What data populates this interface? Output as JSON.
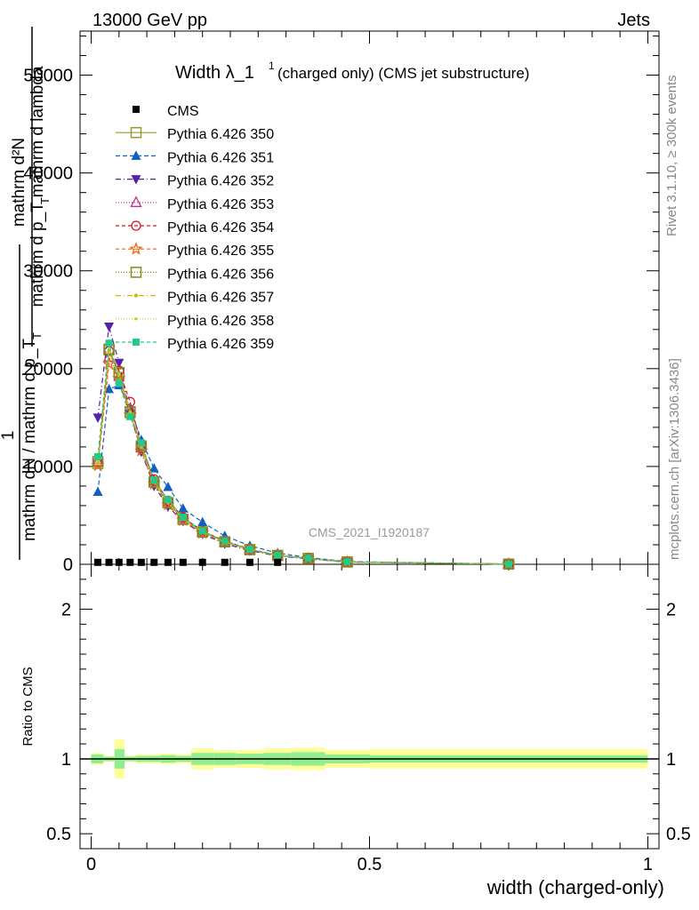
{
  "header": {
    "left": "13000 GeV pp",
    "right": "Jets"
  },
  "side": {
    "rivet": "Rivet 3.1.10, ≥ 300k events",
    "mcplots": "mcplots.cern.ch [arXiv:1306.3436]"
  },
  "chart_data": {
    "type": "line",
    "title_main": "Width λ_1",
    "title_sup": "1",
    "title_sub": "(charged only) (CMS jet substructure)",
    "watermark": "CMS_2021_I1920187",
    "xlabel": "width (charged-only)",
    "ylabel_top": {
      "num": "mathrm d²N",
      "den": "mathrm d p_T mathrm d lambda",
      "den_sub": "T"
    },
    "ylabel_bottom": {
      "num": "1",
      "den": "mathrm dN / mathrm d p_T",
      "den_sub": "T"
    },
    "ratio_ylabel": "Ratio to CMS",
    "xlim": [
      -0.02,
      1.02
    ],
    "ylim": [
      0,
      54500
    ],
    "ratio_ylim": [
      0.4,
      2.3
    ],
    "x_ticks": [
      {
        "v": 0,
        "label": "0"
      },
      {
        "v": 0.5,
        "label": "0.5"
      },
      {
        "v": 1,
        "label": "1"
      }
    ],
    "y_ticks": [
      {
        "v": 0,
        "label": "0"
      },
      {
        "v": 10000,
        "label": "10000"
      },
      {
        "v": 20000,
        "label": "20000"
      },
      {
        "v": 30000,
        "label": "30000"
      },
      {
        "v": 40000,
        "label": "40000"
      },
      {
        "v": 50000,
        "label": "50000"
      }
    ],
    "ratio_ticks": [
      {
        "v": 0.5,
        "label": "0.5"
      },
      {
        "v": 1,
        "label": "1"
      },
      {
        "v": 2,
        "label": "2"
      }
    ],
    "x": [
      0.012,
      0.032,
      0.05,
      0.07,
      0.09,
      0.113,
      0.138,
      0.165,
      0.2,
      0.24,
      0.285,
      0.335,
      0.39,
      0.46,
      0.75
    ],
    "cms": {
      "name": "CMS",
      "values": [
        200,
        200,
        200,
        200,
        200,
        200,
        200,
        200,
        200,
        200,
        200,
        200,
        0,
        0,
        0
      ]
    },
    "series": [
      {
        "name": "Pythia 6.426 350",
        "color": "#999933",
        "marker": "square-open",
        "dash": "",
        "values": [
          10300,
          21900,
          19500,
          15500,
          12000,
          8400,
          6300,
          4600,
          3300,
          2300,
          1500,
          900,
          600,
          240,
          25
        ]
      },
      {
        "name": "Pythia 6.426 351",
        "color": "#1160c0",
        "marker": "triangle-up",
        "dash": "5,3",
        "values": [
          7400,
          17900,
          18300,
          16000,
          12700,
          9800,
          7900,
          5700,
          4300,
          2900,
          1900,
          1150,
          700,
          280,
          30
        ]
      },
      {
        "name": "Pythia 6.426 352",
        "color": "#5522aa",
        "marker": "triangle-down",
        "dash": "6,3,1,3",
        "values": [
          15000,
          24300,
          20600,
          15400,
          11500,
          8000,
          5900,
          4400,
          3100,
          2100,
          1400,
          850,
          550,
          220,
          22
        ]
      },
      {
        "name": "Pythia 6.426 353",
        "color": "#c03090",
        "marker": "triangle-open",
        "dash": "1,2",
        "values": [
          10500,
          21200,
          19200,
          15800,
          11900,
          8500,
          6400,
          4700,
          3300,
          2300,
          1500,
          920,
          600,
          240,
          25
        ]
      },
      {
        "name": "Pythia 6.426 354",
        "color": "#dd1122",
        "marker": "circle-open",
        "dash": "4,3",
        "values": [
          10400,
          21800,
          19800,
          16600,
          12100,
          8700,
          6500,
          4800,
          3400,
          2400,
          1550,
          940,
          620,
          245,
          26
        ]
      },
      {
        "name": "Pythia 6.426 355",
        "color": "#ee6611",
        "marker": "star-open",
        "dash": "4,3",
        "values": [
          10100,
          20500,
          19000,
          15300,
          11600,
          8200,
          6100,
          4500,
          3200,
          2250,
          1480,
          900,
          590,
          235,
          24
        ]
      },
      {
        "name": "Pythia 6.426 356",
        "color": "#888822",
        "marker": "square-open",
        "dash": "1,2",
        "values": [
          10500,
          22000,
          19600,
          15600,
          12100,
          8400,
          6300,
          4600,
          3300,
          2300,
          1500,
          910,
          600,
          240,
          25
        ]
      },
      {
        "name": "Pythia 6.426 357",
        "color": "#ccbb00",
        "marker": "star-small",
        "dash": "6,3,1,3",
        "values": [
          10400,
          21700,
          19400,
          15500,
          12000,
          8400,
          6300,
          4600,
          3300,
          2300,
          1500,
          905,
          600,
          240,
          25
        ]
      },
      {
        "name": "Pythia 6.426 358",
        "color": "#aadd11",
        "marker": "dot",
        "dash": "1,2",
        "values": [
          10500,
          21900,
          19500,
          15600,
          12100,
          8500,
          6400,
          4650,
          3350,
          2330,
          1520,
          915,
          605,
          242,
          25
        ]
      },
      {
        "name": "Pythia 6.426 359",
        "color": "#22cc88",
        "marker": "square",
        "dash": "4,3",
        "values": [
          11000,
          22600,
          18500,
          15100,
          12400,
          8600,
          6600,
          4800,
          3400,
          2350,
          1530,
          920,
          610,
          245,
          26
        ]
      }
    ],
    "ratio_bands": {
      "edges": [
        0,
        0.022,
        0.042,
        0.06,
        0.08,
        0.1,
        0.125,
        0.152,
        0.18,
        0.22,
        0.26,
        0.31,
        0.36,
        0.42,
        0.5,
        1.0
      ],
      "inner": [
        0.03,
        0.015,
        0.065,
        0.015,
        0.02,
        0.02,
        0.025,
        0.02,
        0.04,
        0.04,
        0.035,
        0.04,
        0.045,
        0.03,
        0.025,
        0.025
      ],
      "outer": [
        0.04,
        0.02,
        0.13,
        0.02,
        0.03,
        0.03,
        0.035,
        0.03,
        0.07,
        0.06,
        0.06,
        0.07,
        0.075,
        0.06,
        0.065,
        0.065
      ]
    }
  }
}
